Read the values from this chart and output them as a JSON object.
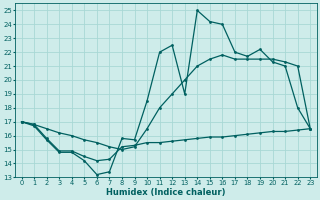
{
  "xlabel": "Humidex (Indice chaleur)",
  "bg_color": "#ceecea",
  "grid_color": "#a8d8d5",
  "line_color": "#006060",
  "xlim": [
    -0.5,
    23.5
  ],
  "ylim": [
    13,
    25.5
  ],
  "yticks": [
    13,
    14,
    15,
    16,
    17,
    18,
    19,
    20,
    21,
    22,
    23,
    24,
    25
  ],
  "xticks": [
    0,
    1,
    2,
    3,
    4,
    5,
    6,
    7,
    8,
    9,
    10,
    11,
    12,
    13,
    14,
    15,
    16,
    17,
    18,
    19,
    20,
    21,
    22,
    23
  ],
  "line1_x": [
    0,
    1,
    2,
    3,
    4,
    5,
    6,
    7,
    8,
    9,
    10,
    11,
    12,
    13,
    14,
    15,
    16,
    17,
    18,
    19,
    20,
    21,
    22,
    23
  ],
  "line1_y": [
    17.0,
    16.7,
    15.7,
    14.8,
    14.8,
    14.2,
    13.2,
    13.4,
    15.8,
    15.7,
    18.5,
    22.0,
    22.5,
    19.0,
    25.0,
    24.2,
    24.0,
    22.0,
    21.7,
    22.2,
    21.3,
    21.0,
    18.0,
    16.5
  ],
  "line2_x": [
    0,
    1,
    2,
    3,
    4,
    5,
    6,
    7,
    8,
    9,
    10,
    11,
    12,
    13,
    14,
    15,
    16,
    17,
    18,
    19,
    20,
    21,
    22,
    23
  ],
  "line2_y": [
    17.0,
    16.8,
    16.5,
    16.2,
    16.0,
    15.7,
    15.5,
    15.2,
    15.0,
    15.2,
    16.5,
    18.0,
    19.0,
    20.0,
    21.0,
    21.5,
    21.8,
    21.5,
    21.5,
    21.5,
    21.5,
    21.3,
    21.0,
    16.5
  ],
  "line3_x": [
    0,
    1,
    2,
    3,
    4,
    5,
    6,
    7,
    8,
    9,
    10,
    11,
    12,
    13,
    14,
    15,
    16,
    17,
    18,
    19,
    20,
    21,
    22,
    23
  ],
  "line3_y": [
    17.0,
    16.8,
    15.8,
    14.9,
    14.9,
    14.5,
    14.2,
    14.3,
    15.2,
    15.3,
    15.5,
    15.5,
    15.6,
    15.7,
    15.8,
    15.9,
    15.9,
    16.0,
    16.1,
    16.2,
    16.3,
    16.3,
    16.4,
    16.5
  ]
}
